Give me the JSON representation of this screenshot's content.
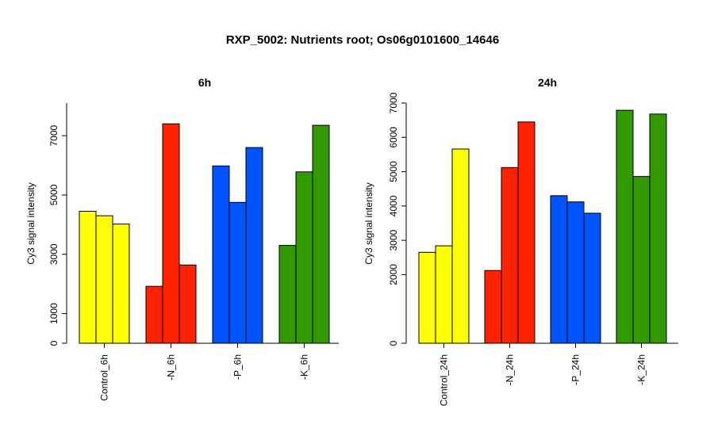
{
  "title": "RXP_5002: Nutrients root; Os06g0101600_14646",
  "chart_data": [
    {
      "type": "bar",
      "title": "6h",
      "ylabel": "Cy3 signal intensity",
      "ylim": [
        0,
        8100
      ],
      "yticks": [
        0,
        1000,
        3000,
        5000,
        7000
      ],
      "groups": [
        {
          "label": "Control_6h",
          "color": "#ffff00",
          "values": [
            4450,
            4300,
            4020
          ]
        },
        {
          "label": "-N_6h",
          "color": "#ff2200",
          "values": [
            1920,
            7400,
            2640
          ]
        },
        {
          "label": "-P_6h",
          "color": "#0055ff",
          "values": [
            5980,
            4750,
            6600
          ]
        },
        {
          "label": "-K_6h",
          "color": "#339900",
          "values": [
            3300,
            5780,
            7350
          ]
        }
      ]
    },
    {
      "type": "bar",
      "title": "24h",
      "ylabel": "Cy3 signal intensity",
      "ylim": [
        0,
        7000
      ],
      "yticks": [
        0,
        2000,
        3000,
        4000,
        5000,
        6000,
        7000
      ],
      "groups": [
        {
          "label": "Control_24h",
          "color": "#ffff00",
          "values": [
            2650,
            2840,
            5660
          ]
        },
        {
          "label": "-N_24h",
          "color": "#ff2200",
          "values": [
            2120,
            5120,
            6450
          ]
        },
        {
          "label": "-P_24h",
          "color": "#0055ff",
          "values": [
            4300,
            4120,
            3790
          ]
        },
        {
          "label": "-K_24h",
          "color": "#339900",
          "values": [
            6790,
            4860,
            6680
          ]
        }
      ]
    }
  ]
}
